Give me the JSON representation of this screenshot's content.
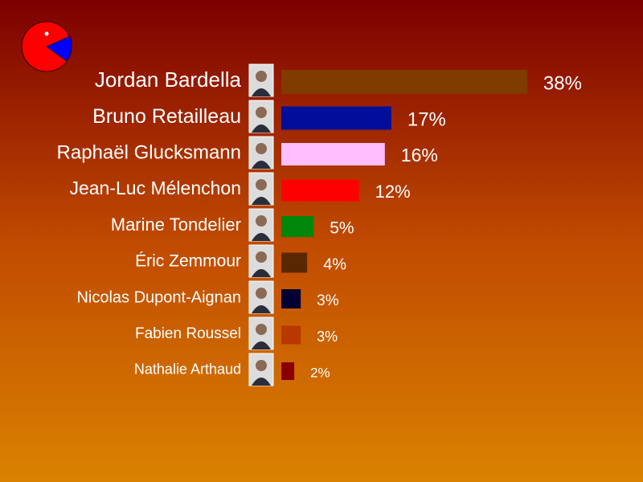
{
  "chart_data": {
    "type": "bar",
    "orientation": "horizontal",
    "categories": [
      "Jordan Bardella",
      "Bruno Retailleau",
      "Raphaël Glucksmann",
      "Jean-Luc Mélenchon",
      "Marine Tondelier",
      "Éric Zemmour",
      "Nicolas Dupont-Aignan",
      "Fabien Roussel",
      "Nathalie Arthaud"
    ],
    "values": [
      38,
      17,
      16,
      12,
      5,
      4,
      3,
      3,
      2
    ],
    "value_labels": [
      "38%",
      "17%",
      "16%",
      "12%",
      "5%",
      "4%",
      "3%",
      "3%",
      "2%"
    ],
    "colors": [
      "#7f3b00",
      "#000e9a",
      "#ffbfff",
      "#ff0000",
      "#00860a",
      "#5a2800",
      "#000033",
      "#b83800",
      "#8a0000"
    ],
    "xlim": [
      0,
      100
    ],
    "grid": false,
    "legend": "none"
  },
  "logo": {
    "icon": "pie-chart-logo-icon",
    "colors": [
      "#ff0000",
      "#0000ff",
      "#ffffff"
    ]
  },
  "portrait_icon": "candidate-portrait-icon"
}
